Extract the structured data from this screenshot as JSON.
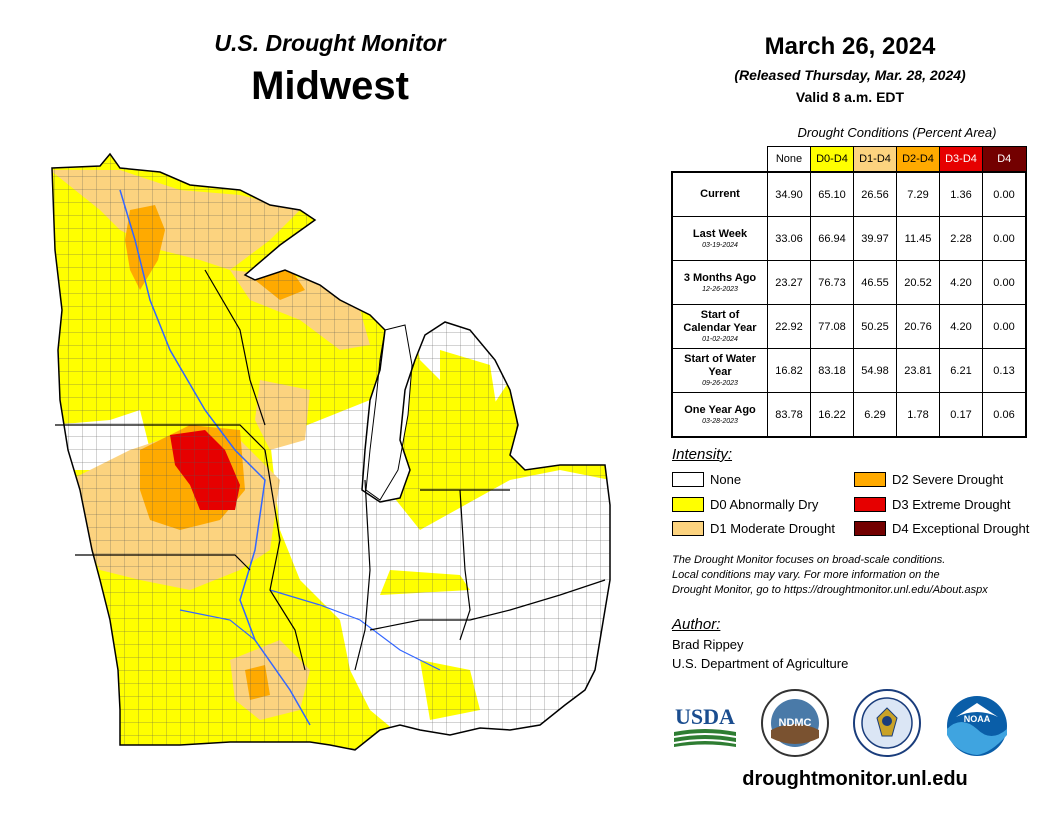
{
  "header": {
    "title_line1": "U.S. Drought Monitor",
    "title_line2": "Midwest",
    "date": "March 26, 2024",
    "released": "(Released Thursday, Mar. 28, 2024)",
    "valid": "Valid 8 a.m. EDT"
  },
  "table": {
    "caption": "Drought Conditions (Percent Area)",
    "columns": [
      {
        "label": "None",
        "color": "#ffffff",
        "text_color": "#000000"
      },
      {
        "label": "D0-D4",
        "color": "#ffff00",
        "text_color": "#000000"
      },
      {
        "label": "D1-D4",
        "color": "#fcd37f",
        "text_color": "#000000"
      },
      {
        "label": "D2-D4",
        "color": "#ffaa00",
        "text_color": "#000000"
      },
      {
        "label": "D3-D4",
        "color": "#e60000",
        "text_color": "#ffffff"
      },
      {
        "label": "D4",
        "color": "#730000",
        "text_color": "#ffffff"
      }
    ],
    "rows": [
      {
        "label": "Current",
        "date": "",
        "values": [
          "34.90",
          "65.10",
          "26.56",
          "7.29",
          "1.36",
          "0.00"
        ]
      },
      {
        "label": "Last Week",
        "date": "03-19-2024",
        "values": [
          "33.06",
          "66.94",
          "39.97",
          "11.45",
          "2.28",
          "0.00"
        ]
      },
      {
        "label": "3 Months Ago",
        "date": "12-26-2023",
        "values": [
          "23.27",
          "76.73",
          "46.55",
          "20.52",
          "4.20",
          "0.00"
        ]
      },
      {
        "label": "Start of Calendar Year",
        "date": "01-02-2024",
        "values": [
          "22.92",
          "77.08",
          "50.25",
          "20.76",
          "4.20",
          "0.00"
        ]
      },
      {
        "label": "Start of Water Year",
        "date": "09-26-2023",
        "values": [
          "16.82",
          "83.18",
          "54.98",
          "23.81",
          "6.21",
          "0.13"
        ]
      },
      {
        "label": "One Year Ago",
        "date": "03-28-2023",
        "values": [
          "83.78",
          "16.22",
          "6.29",
          "1.78",
          "0.17",
          "0.06"
        ]
      }
    ]
  },
  "legend": {
    "title": "Intensity:",
    "items": [
      {
        "label": "None",
        "color": "#ffffff"
      },
      {
        "label": "D0 Abnormally Dry",
        "color": "#ffff00"
      },
      {
        "label": "D1 Moderate Drought",
        "color": "#fcd37f"
      },
      {
        "label": "D2 Severe Drought",
        "color": "#ffaa00"
      },
      {
        "label": "D3 Extreme Drought",
        "color": "#e60000"
      },
      {
        "label": "D4 Exceptional Drought",
        "color": "#730000"
      }
    ]
  },
  "note": {
    "line1": "The Drought Monitor focuses on broad-scale conditions.",
    "line2": "Local conditions may vary. For more information on the",
    "line3": "Drought Monitor, go to https://droughtmonitor.unl.edu/About.aspx"
  },
  "author": {
    "title": "Author:",
    "name": "Brad Rippey",
    "org": "U.S. Department of Agriculture"
  },
  "logos": {
    "usda": "USDA",
    "ndmc": "NDMC",
    "noaa": "NOAA"
  },
  "footer": {
    "website": "droughtmonitor.unl.edu"
  }
}
